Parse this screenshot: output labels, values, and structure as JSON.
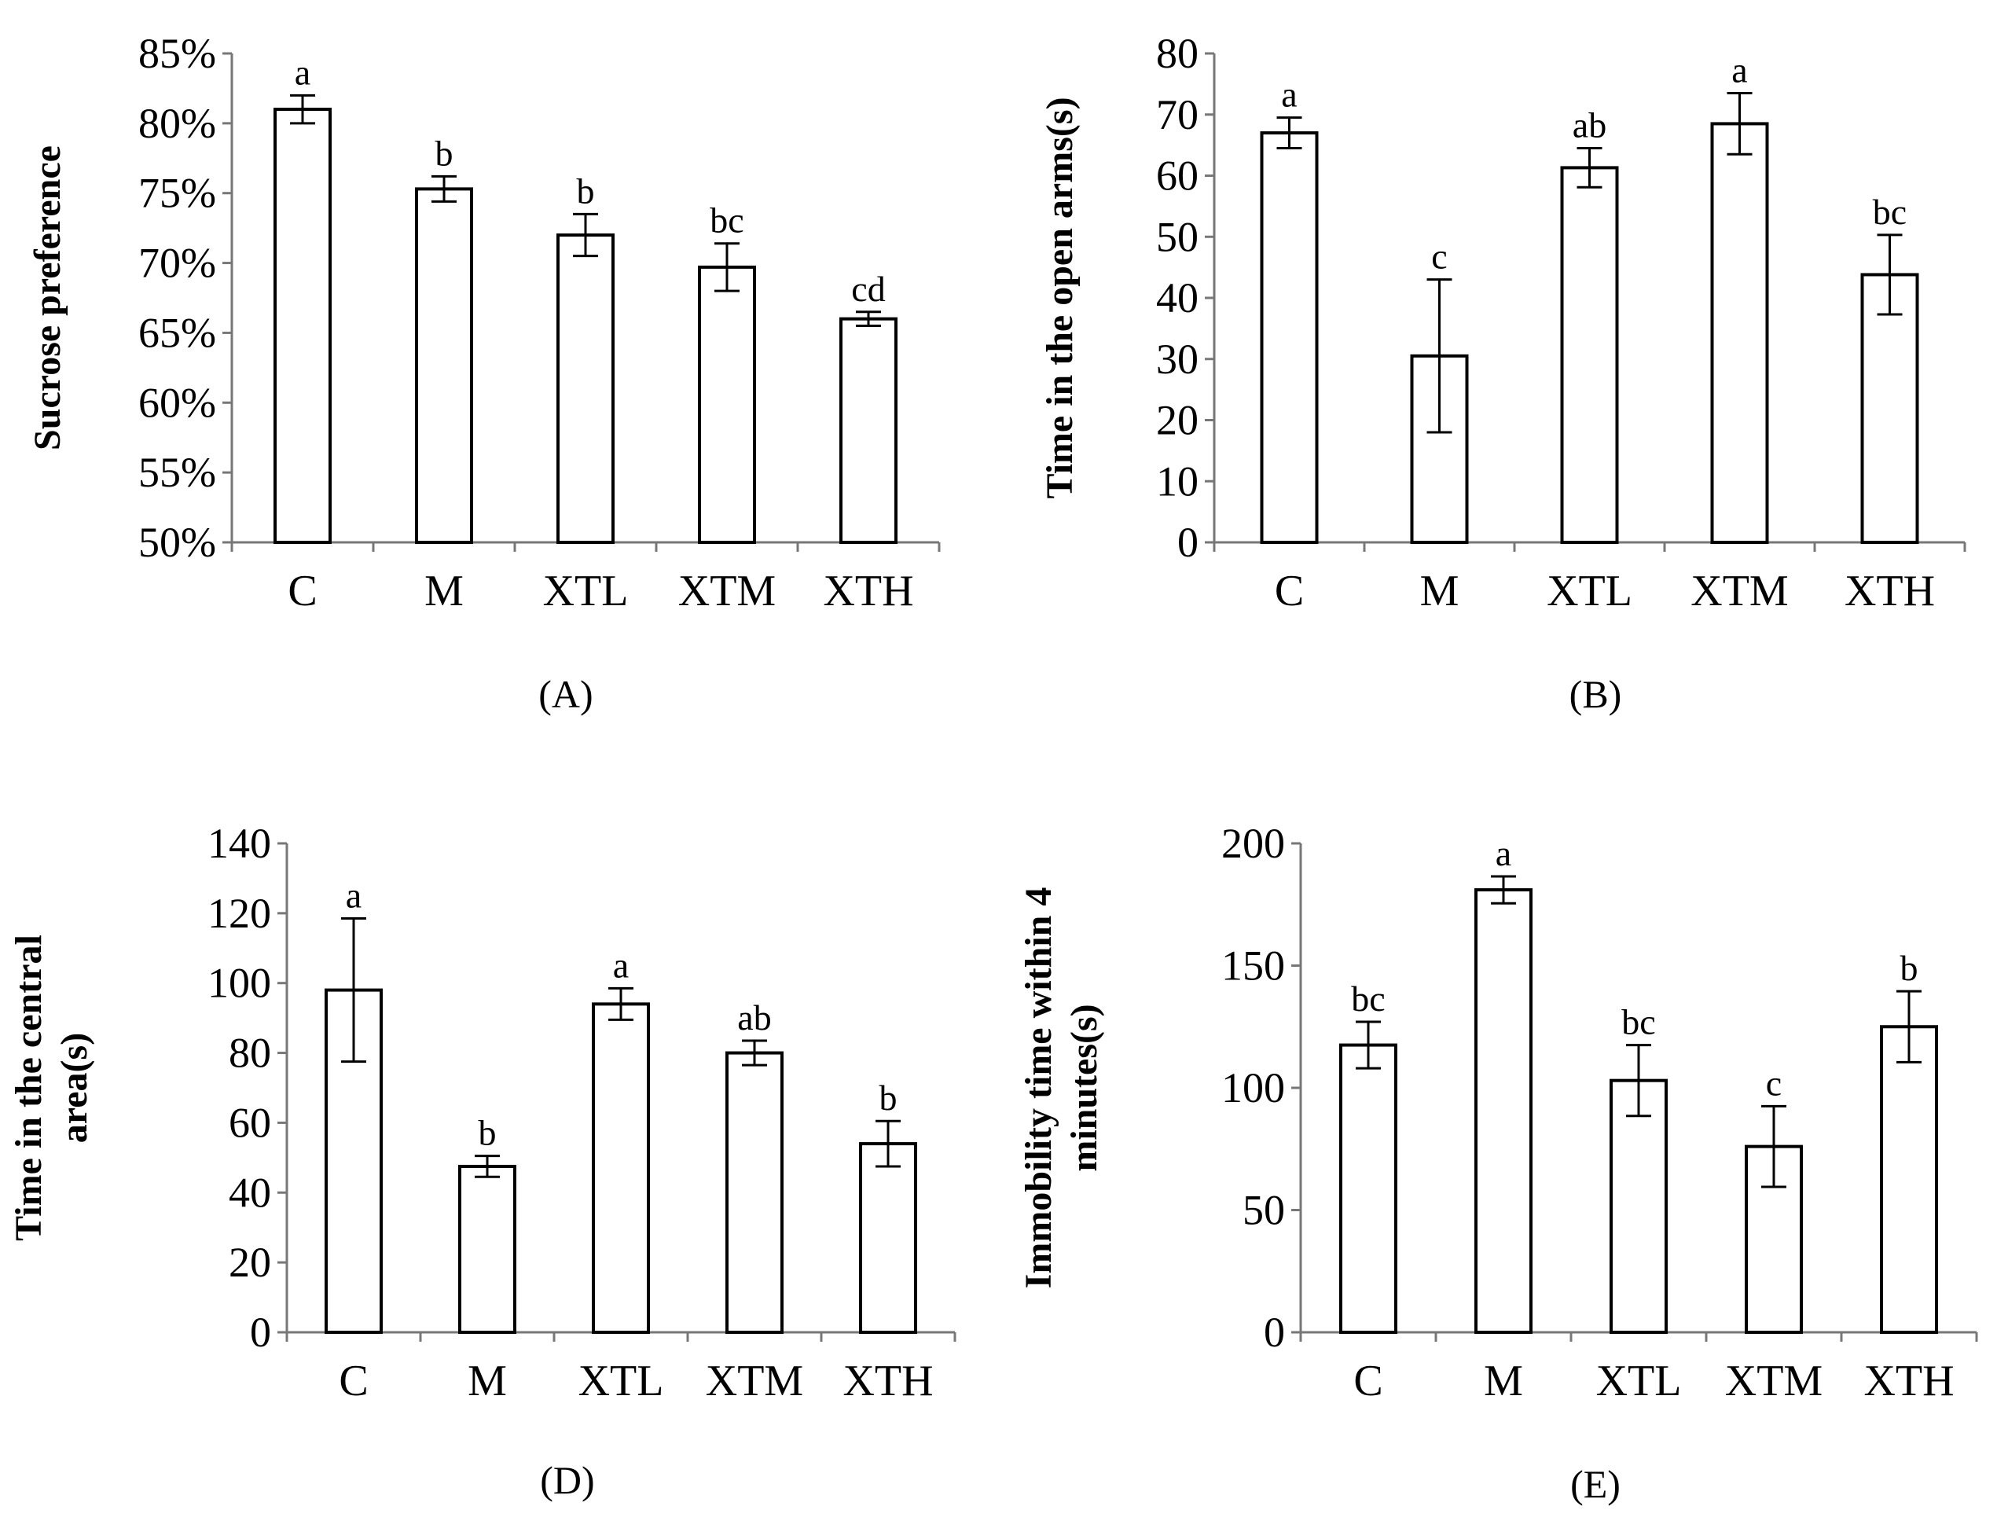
{
  "chart_data": [
    {
      "type": "bar",
      "panel_label": "(A)",
      "ylabel_lines": [
        "Sucrose preference"
      ],
      "categories": [
        "C",
        "M",
        "XTL",
        "XTM",
        "XTH"
      ],
      "values": [
        81.0,
        75.3,
        72.0,
        69.7,
        66.0
      ],
      "errors": [
        1.0,
        0.9,
        1.5,
        1.7,
        0.5
      ],
      "significance": [
        "a",
        "b",
        "b",
        "bc",
        "cd"
      ],
      "ylim": [
        50,
        85
      ],
      "yticks": [
        50,
        55,
        60,
        65,
        70,
        75,
        80,
        85
      ],
      "ytick_labels": [
        "50%",
        "55%",
        "60%",
        "65%",
        "70%",
        "75%",
        "80%",
        "85%"
      ]
    },
    {
      "type": "bar",
      "panel_label": "(B)",
      "ylabel_lines": [
        "Time in the open arms(s)"
      ],
      "categories": [
        "C",
        "M",
        "XTL",
        "XTM",
        "XTH"
      ],
      "values": [
        67,
        30.5,
        61.3,
        68.5,
        43.8
      ],
      "errors": [
        2.5,
        12.5,
        3.2,
        5.0,
        6.5
      ],
      "significance": [
        "a",
        "c",
        "ab",
        "a",
        "bc"
      ],
      "ylim": [
        0,
        80
      ],
      "yticks": [
        0,
        10,
        20,
        30,
        40,
        50,
        60,
        70,
        80
      ],
      "ytick_labels": [
        "0",
        "10",
        "20",
        "30",
        "40",
        "50",
        "60",
        "70",
        "80"
      ]
    },
    {
      "type": "bar",
      "panel_label": "(D)",
      "ylabel_lines": [
        "Time in the central",
        "area(s)"
      ],
      "categories": [
        "C",
        "M",
        "XTL",
        "XTM",
        "XTH"
      ],
      "values": [
        98,
        47.5,
        94,
        80,
        54
      ],
      "errors": [
        20.5,
        3.0,
        4.5,
        3.5,
        6.5
      ],
      "significance": [
        "a",
        "b",
        "a",
        "ab",
        "b"
      ],
      "ylim": [
        0,
        140
      ],
      "yticks": [
        0,
        20,
        40,
        60,
        80,
        100,
        120,
        140
      ],
      "ytick_labels": [
        "0",
        "20",
        "40",
        "60",
        "80",
        "100",
        "120",
        "140"
      ]
    },
    {
      "type": "bar",
      "panel_label": "(E)",
      "ylabel_lines": [
        "Immobility time within 4",
        "minutes(s)"
      ],
      "categories": [
        "C",
        "M",
        "XTL",
        "XTM",
        "XTH"
      ],
      "values": [
        117.5,
        181,
        103,
        76,
        125
      ],
      "errors": [
        9.5,
        5.5,
        14.5,
        16.5,
        14.5
      ],
      "significance": [
        "bc",
        "a",
        "bc",
        "c",
        "b"
      ],
      "ylim": [
        0,
        200
      ],
      "yticks": [
        0,
        50,
        100,
        150,
        200
      ],
      "ytick_labels": [
        "0",
        "50",
        "100",
        "150",
        "200"
      ]
    }
  ]
}
